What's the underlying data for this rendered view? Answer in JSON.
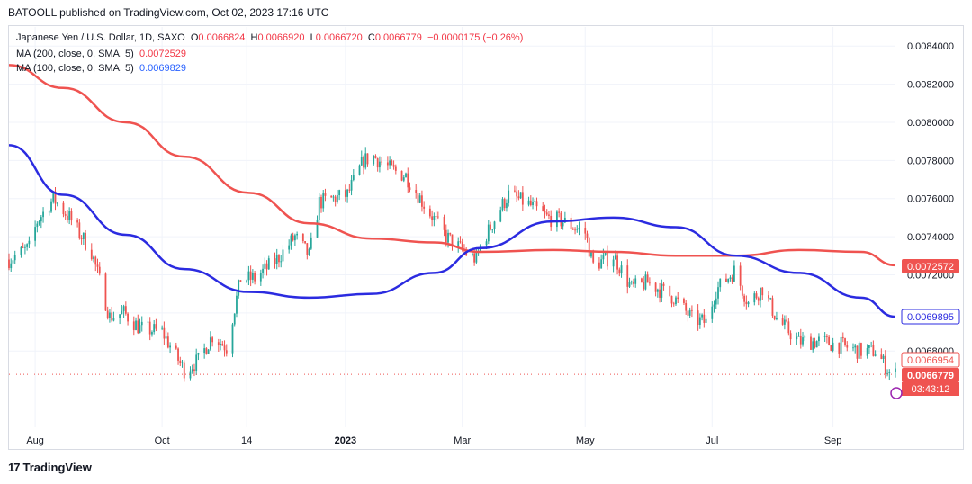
{
  "header": {
    "published_by": "BATOOLL published on TradingView.com, Oct 02, 2023 17:16 UTC"
  },
  "legend": {
    "symbol": "Japanese Yen / U.S. Dollar, 1D, SAXO",
    "open_label": "O",
    "open": "0.0066824",
    "high_label": "H",
    "high": "0.0066920",
    "low_label": "L",
    "low": "0.0066720",
    "close_label": "C",
    "close": "0.0066779",
    "change": "−0.0000175 (−0.26%)",
    "ma200_label": "MA (200, close, 0, SMA, 5)",
    "ma200_value": "0.0072529",
    "ma100_label": "MA (100, close, 0, SMA, 5)",
    "ma100_value": "0.0069829"
  },
  "footer": {
    "brand": "TradingView"
  },
  "colors": {
    "up": "#26a69a",
    "down": "#ef5350",
    "ma200": "#ef5350",
    "ma100": "#2b2be0",
    "grid": "#f0f3fa",
    "axis_text": "#131722"
  },
  "chart_data": {
    "type": "candlestick",
    "instrument": "JPY/USD",
    "timeframe": "1D",
    "ylim": [
      0.0064,
      0.0085
    ],
    "y_ticks": [
      "0.0084000",
      "0.0082000",
      "0.0080000",
      "0.0078000",
      "0.0076000",
      "0.0074000",
      "0.0072000",
      "0.0070000",
      "0.0068000"
    ],
    "x_ticks": [
      "Aug",
      "Oct",
      "14",
      "2023",
      "Mar",
      "May",
      "Jul",
      "Sep"
    ],
    "close_series": {
      "name": "close (approx.)",
      "x": [
        "2022-07-19",
        "2022-07-29",
        "2022-08-02",
        "2022-08-10",
        "2022-08-18",
        "2022-08-29",
        "2022-09-07",
        "2022-09-14",
        "2022-09-22",
        "2022-10-03",
        "2022-10-14",
        "2022-10-21",
        "2022-10-28",
        "2022-11-04",
        "2022-11-11",
        "2022-11-18",
        "2022-11-29",
        "2022-12-08",
        "2022-12-15",
        "2022-12-20",
        "2023-01-03",
        "2023-01-11",
        "2023-01-16",
        "2023-01-25",
        "2023-02-01",
        "2023-02-10",
        "2023-02-21",
        "2023-03-01",
        "2023-03-08",
        "2023-03-10",
        "2023-03-20",
        "2023-03-24",
        "2023-04-03",
        "2023-04-12",
        "2023-04-20",
        "2023-05-01",
        "2023-05-05",
        "2023-05-15",
        "2023-05-24",
        "2023-06-01",
        "2023-06-14",
        "2023-06-23",
        "2023-06-30",
        "2023-07-05",
        "2023-07-14",
        "2023-07-21",
        "2023-07-28",
        "2023-08-04",
        "2023-08-15",
        "2023-08-25",
        "2023-09-05",
        "2023-09-14",
        "2023-09-22",
        "2023-09-29",
        "2023-10-02"
      ],
      "y": [
        0.00728,
        0.00734,
        0.00748,
        0.0076,
        0.0075,
        0.00732,
        0.00698,
        0.007,
        0.00692,
        0.0069,
        0.0067,
        0.00675,
        0.00688,
        0.00682,
        0.00718,
        0.00718,
        0.00728,
        0.0074,
        0.0073,
        0.00758,
        0.00762,
        0.0078,
        0.00782,
        0.00775,
        0.00772,
        0.00757,
        0.0074,
        0.00733,
        0.00728,
        0.00735,
        0.00755,
        0.00762,
        0.00757,
        0.0075,
        0.00748,
        0.00742,
        0.00725,
        0.0073,
        0.00713,
        0.00716,
        0.00708,
        0.00697,
        0.00695,
        0.00712,
        0.00722,
        0.00705,
        0.00713,
        0.00697,
        0.00685,
        0.00685,
        0.00683,
        0.0068,
        0.0068,
        0.00669,
        0.00668
      ]
    },
    "series": [
      {
        "name": "MA (200, close, 0, SMA, 5)",
        "x": [
          "2022-07-19",
          "2022-08-15",
          "2022-09-15",
          "2022-10-14",
          "2022-11-15",
          "2022-12-15",
          "2023-01-15",
          "2023-02-15",
          "2023-03-10",
          "2023-04-15",
          "2023-05-15",
          "2023-06-15",
          "2023-07-15",
          "2023-08-15",
          "2023-09-15",
          "2023-10-02"
        ],
        "y": [
          0.0083,
          0.00818,
          0.008,
          0.00782,
          0.00763,
          0.00747,
          0.00739,
          0.00737,
          0.00732,
          0.00733,
          0.00732,
          0.0073,
          0.0073,
          0.00733,
          0.00732,
          0.00725
        ]
      },
      {
        "name": "MA (100, close, 0, SMA, 5)",
        "x": [
          "2022-07-19",
          "2022-08-15",
          "2022-09-15",
          "2022-10-14",
          "2022-11-15",
          "2022-12-15",
          "2023-01-15",
          "2023-02-15",
          "2023-03-10",
          "2023-04-15",
          "2023-05-15",
          "2023-06-15",
          "2023-07-15",
          "2023-08-15",
          "2023-09-15",
          "2023-10-02"
        ],
        "y": [
          0.00788,
          0.00762,
          0.00741,
          0.00723,
          0.00711,
          0.00708,
          0.0071,
          0.00721,
          0.00734,
          0.00748,
          0.0075,
          0.00745,
          0.0073,
          0.00721,
          0.00708,
          0.00698
        ]
      }
    ],
    "price_labels": [
      {
        "value": "0.0072572",
        "kind": "ma200"
      },
      {
        "value": "0.0069895",
        "kind": "ma100"
      },
      {
        "value": "0.0066954",
        "kind": "prev"
      },
      {
        "value": "0.0066779",
        "kind": "last"
      }
    ],
    "countdown": "03:43:12",
    "grid": true
  }
}
